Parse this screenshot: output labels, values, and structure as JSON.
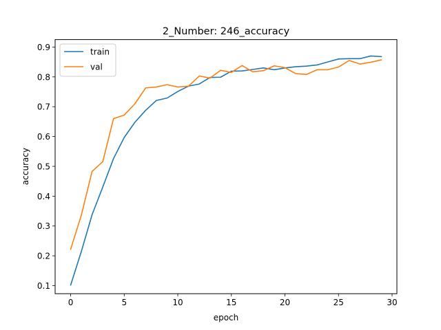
{
  "chart_data": {
    "type": "line",
    "title": "2_Number: 246_accuracy",
    "xlabel": "epoch",
    "ylabel": "accuracy",
    "xlim": [
      -1.45,
      30.45
    ],
    "ylim": [
      0.073,
      0.925
    ],
    "xticks": [
      0,
      5,
      10,
      15,
      20,
      25,
      30
    ],
    "yticks": [
      0.1,
      0.2,
      0.3,
      0.4,
      0.5,
      0.6,
      0.7,
      0.8,
      0.9
    ],
    "xtick_labels": [
      "0",
      "5",
      "10",
      "15",
      "20",
      "25",
      "30"
    ],
    "ytick_labels": [
      "0.1",
      "0.2",
      "0.3",
      "0.4",
      "0.5",
      "0.6",
      "0.7",
      "0.8",
      "0.9"
    ],
    "grid": false,
    "legend_position": "upper-left",
    "x": [
      0,
      1,
      2,
      3,
      4,
      5,
      6,
      7,
      8,
      9,
      10,
      11,
      12,
      13,
      14,
      15,
      16,
      17,
      18,
      19,
      20,
      21,
      22,
      23,
      24,
      25,
      26,
      27,
      28,
      29
    ],
    "series": [
      {
        "name": "train",
        "color": "#1f77b4",
        "values": [
          0.102,
          0.215,
          0.338,
          0.431,
          0.526,
          0.597,
          0.648,
          0.688,
          0.721,
          0.729,
          0.751,
          0.769,
          0.776,
          0.798,
          0.799,
          0.819,
          0.82,
          0.825,
          0.83,
          0.824,
          0.83,
          0.834,
          0.836,
          0.84,
          0.85,
          0.86,
          0.861,
          0.861,
          0.87,
          0.868
        ]
      },
      {
        "name": "val",
        "color": "#ff7f0e",
        "values": [
          0.222,
          0.337,
          0.483,
          0.516,
          0.66,
          0.672,
          0.71,
          0.763,
          0.766,
          0.774,
          0.766,
          0.769,
          0.803,
          0.796,
          0.822,
          0.815,
          0.838,
          0.817,
          0.821,
          0.837,
          0.831,
          0.811,
          0.808,
          0.824,
          0.824,
          0.833,
          0.855,
          0.843,
          0.849,
          0.857
        ]
      }
    ]
  }
}
